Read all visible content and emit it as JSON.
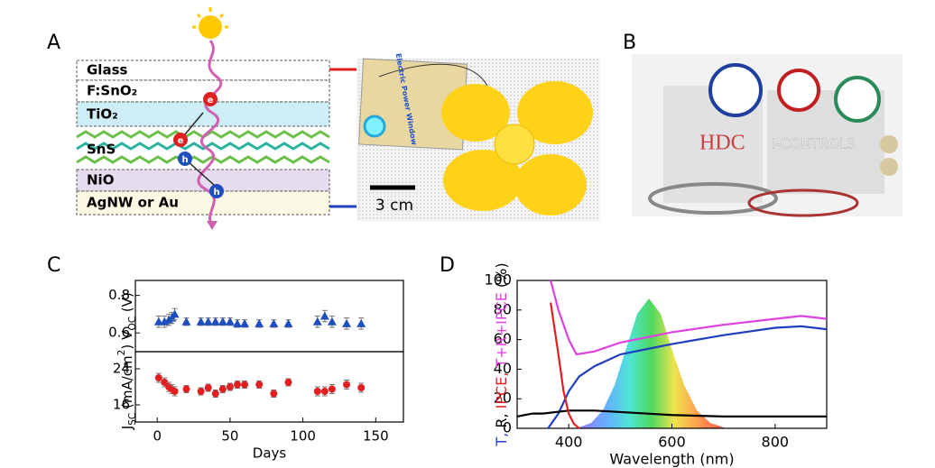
{
  "panels": {
    "a": "A",
    "b": "B",
    "c": "C",
    "d": "D"
  },
  "diagram": {
    "layers": [
      "Glass",
      "F:SnO₂",
      "TiO₂",
      "SnS",
      "NiO",
      "AgNW or Au"
    ],
    "carriers": [
      "e",
      "e",
      "h",
      "h"
    ],
    "scale_bar": "3 cm",
    "device_label": "Electric Power Window"
  },
  "photo_b": {
    "texts": [
      "HDC",
      "I-CONTROLS"
    ]
  },
  "chart_data": [
    {
      "type": "scatter",
      "marker": "triangle",
      "color": "#1f4fbf",
      "ylabel": [
        {
          "text": "V"
        },
        {
          "text": "OC",
          "script": "sub"
        },
        {
          "text": " (V)"
        }
      ],
      "x": [
        1,
        5,
        8,
        10,
        12,
        20,
        30,
        35,
        40,
        45,
        50,
        55,
        60,
        70,
        80,
        90,
        110,
        115,
        120,
        130,
        140
      ],
      "values": [
        0.66,
        0.66,
        0.67,
        0.68,
        0.7,
        0.66,
        0.66,
        0.66,
        0.66,
        0.66,
        0.66,
        0.65,
        0.65,
        0.65,
        0.65,
        0.65,
        0.66,
        0.69,
        0.66,
        0.65,
        0.65
      ],
      "errors": [
        0.03,
        0.03,
        0.03,
        0.03,
        0.03,
        0.02,
        0.02,
        0.02,
        0.02,
        0.02,
        0.02,
        0.02,
        0.02,
        0.02,
        0.02,
        0.02,
        0.03,
        0.03,
        0.03,
        0.03,
        0.03
      ],
      "xlim": [
        -15,
        169
      ],
      "ylim": [
        0.5,
        0.88
      ],
      "yticks": [
        0.6,
        0.8
      ]
    },
    {
      "type": "scatter",
      "marker": "circle",
      "color": "#e02020",
      "ylabel": [
        {
          "text": "J"
        },
        {
          "text": "SC",
          "script": "sub"
        },
        {
          "text": " (mA/cm"
        },
        {
          "text": "2",
          "script": "super"
        },
        {
          "text": ")"
        }
      ],
      "xlabel": "Days",
      "x": [
        1,
        5,
        8,
        10,
        12,
        20,
        30,
        35,
        40,
        45,
        50,
        55,
        60,
        70,
        80,
        90,
        110,
        115,
        120,
        130,
        140
      ],
      "values": [
        22,
        21,
        20,
        19.5,
        19,
        19.5,
        19,
        19.8,
        18.5,
        19.5,
        20,
        20.5,
        20.5,
        20.5,
        18.5,
        21,
        19,
        19,
        19.5,
        20.5,
        19.8
      ],
      "errors": [
        1,
        1,
        1,
        1,
        1,
        0.8,
        0.8,
        0.8,
        0.8,
        0.8,
        0.8,
        0.8,
        0.8,
        0.8,
        0.8,
        0.8,
        1,
        1,
        1,
        1,
        1
      ],
      "xlim": [
        -15,
        169
      ],
      "xticks": [
        0,
        50,
        100,
        150
      ],
      "ylim": [
        12.2,
        27.8
      ],
      "yticks": [
        16,
        24
      ]
    },
    {
      "type": "line",
      "xlabel": "Wavelength (nm)",
      "ylabel": [
        {
          "text": "T, ",
          "color": "#1f3fbf"
        },
        {
          "text": "R, ",
          "color": "#000000"
        },
        {
          "text": "IPCE, ",
          "color": "#e02020"
        },
        {
          "text": "T+R+IPCE",
          "color": "#e040e0"
        },
        {
          "text": " (%)",
          "color": "#000000"
        }
      ],
      "xlim": [
        300,
        900
      ],
      "xticks": [
        400,
        600,
        800
      ],
      "ylim": [
        0,
        100
      ],
      "yticks": [
        0,
        20,
        40,
        60,
        80,
        100
      ],
      "series": [
        {
          "color": "#1f3fbf",
          "x": [
            360,
            380,
            400,
            420,
            450,
            500,
            600,
            700,
            800,
            850,
            900
          ],
          "values": [
            0,
            10,
            25,
            35,
            42,
            50,
            57,
            63,
            68,
            69,
            67
          ]
        },
        {
          "color": "#000000",
          "x": [
            300,
            330,
            350,
            400,
            450,
            500,
            600,
            700,
            800,
            900
          ],
          "values": [
            8,
            10,
            10,
            12,
            12,
            11,
            9,
            8,
            8,
            8
          ]
        },
        {
          "color": "#e02020",
          "x": [
            365,
            380,
            390,
            400,
            410,
            420
          ],
          "values": [
            85,
            50,
            25,
            10,
            3,
            0
          ]
        },
        {
          "color": "#e040e0",
          "x": [
            365,
            380,
            400,
            415,
            450,
            500,
            600,
            700,
            800,
            850,
            900
          ],
          "values": [
            100,
            80,
            60,
            50,
            52,
            58,
            65,
            70,
            74,
            76,
            74
          ]
        }
      ]
    }
  ]
}
